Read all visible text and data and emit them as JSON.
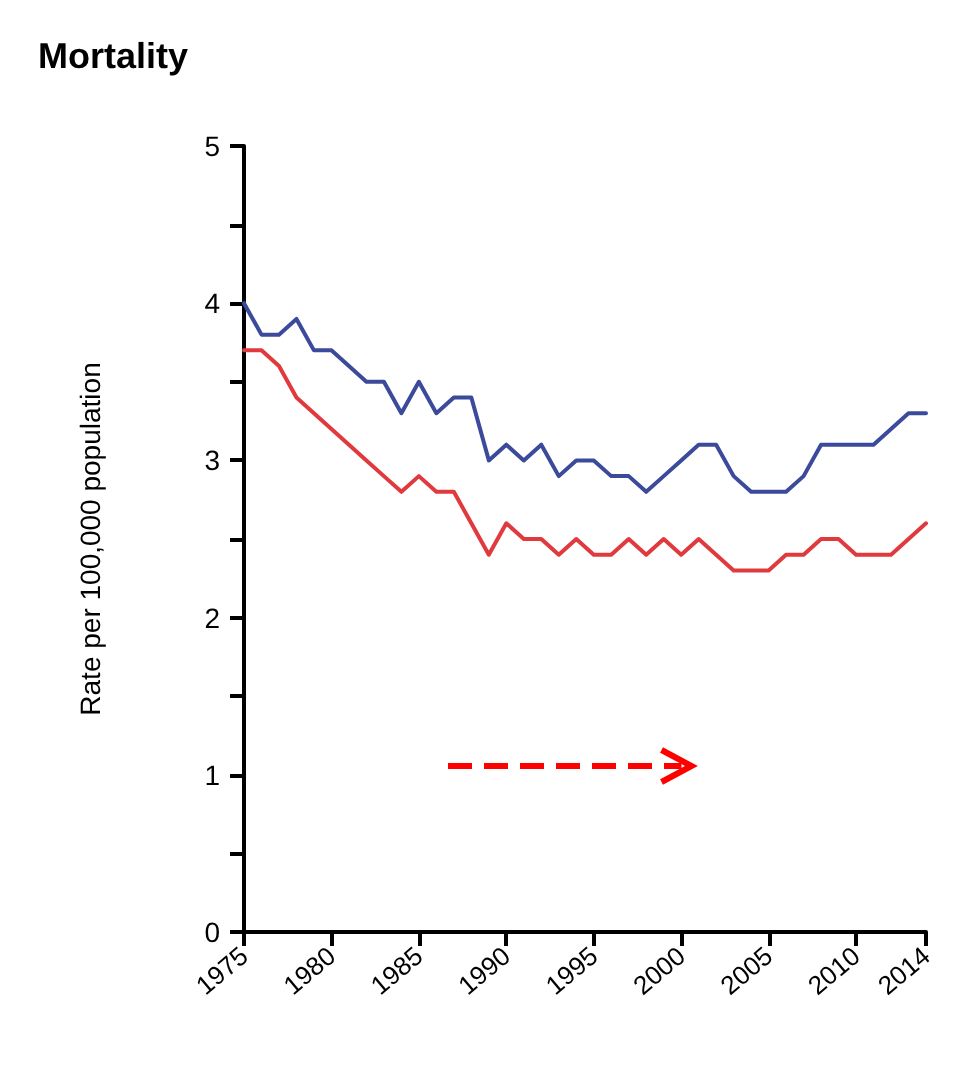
{
  "chart_data": {
    "type": "line",
    "title": "Mortality",
    "ylabel": "Rate per 100,000 population",
    "x": [
      1975,
      1976,
      1977,
      1978,
      1979,
      1980,
      1981,
      1982,
      1983,
      1984,
      1985,
      1986,
      1987,
      1988,
      1989,
      1990,
      1991,
      1992,
      1993,
      1994,
      1995,
      1996,
      1997,
      1998,
      1999,
      2000,
      2001,
      2002,
      2003,
      2004,
      2005,
      2006,
      2007,
      2008,
      2009,
      2010,
      2011,
      2012,
      2013,
      2014
    ],
    "series": [
      {
        "color": "#3b4a9a",
        "values": [
          4.0,
          3.8,
          3.8,
          3.9,
          3.7,
          3.7,
          3.6,
          3.5,
          3.5,
          3.3,
          3.5,
          3.3,
          3.4,
          3.4,
          3.0,
          3.1,
          3.0,
          3.1,
          2.9,
          3.0,
          3.0,
          2.9,
          2.9,
          2.8,
          2.9,
          3.0,
          3.1,
          3.1,
          2.9,
          2.8,
          2.8,
          2.8,
          2.9,
          3.1,
          3.1,
          3.1,
          3.1,
          3.2,
          3.3,
          3.3
        ]
      },
      {
        "color": "#e03a3e",
        "values": [
          3.7,
          3.7,
          3.6,
          3.4,
          3.3,
          3.2,
          3.1,
          3.0,
          2.9,
          2.8,
          2.9,
          2.8,
          2.8,
          2.6,
          2.4,
          2.6,
          2.5,
          2.5,
          2.4,
          2.5,
          2.4,
          2.4,
          2.5,
          2.4,
          2.5,
          2.4,
          2.5,
          2.4,
          2.3,
          2.3,
          2.3,
          2.4,
          2.4,
          2.5,
          2.5,
          2.4,
          2.4,
          2.4,
          2.5,
          2.6
        ]
      }
    ],
    "xlim": [
      1975,
      2014
    ],
    "xticks": [
      1975,
      1980,
      1985,
      1990,
      1995,
      2000,
      2005,
      2010,
      2014
    ],
    "ylim": [
      0,
      5
    ],
    "yticks": [
      0,
      {
        "value": 0.5,
        "label": null
      },
      1,
      {
        "value": 1.5,
        "label": null
      },
      2,
      {
        "value": 2.5,
        "label": null
      },
      3,
      {
        "value": 3.5,
        "label": null
      },
      4,
      {
        "value": 4.5,
        "label": null
      },
      5
    ],
    "grid": false,
    "marker": "none",
    "line_style": "solid"
  }
}
